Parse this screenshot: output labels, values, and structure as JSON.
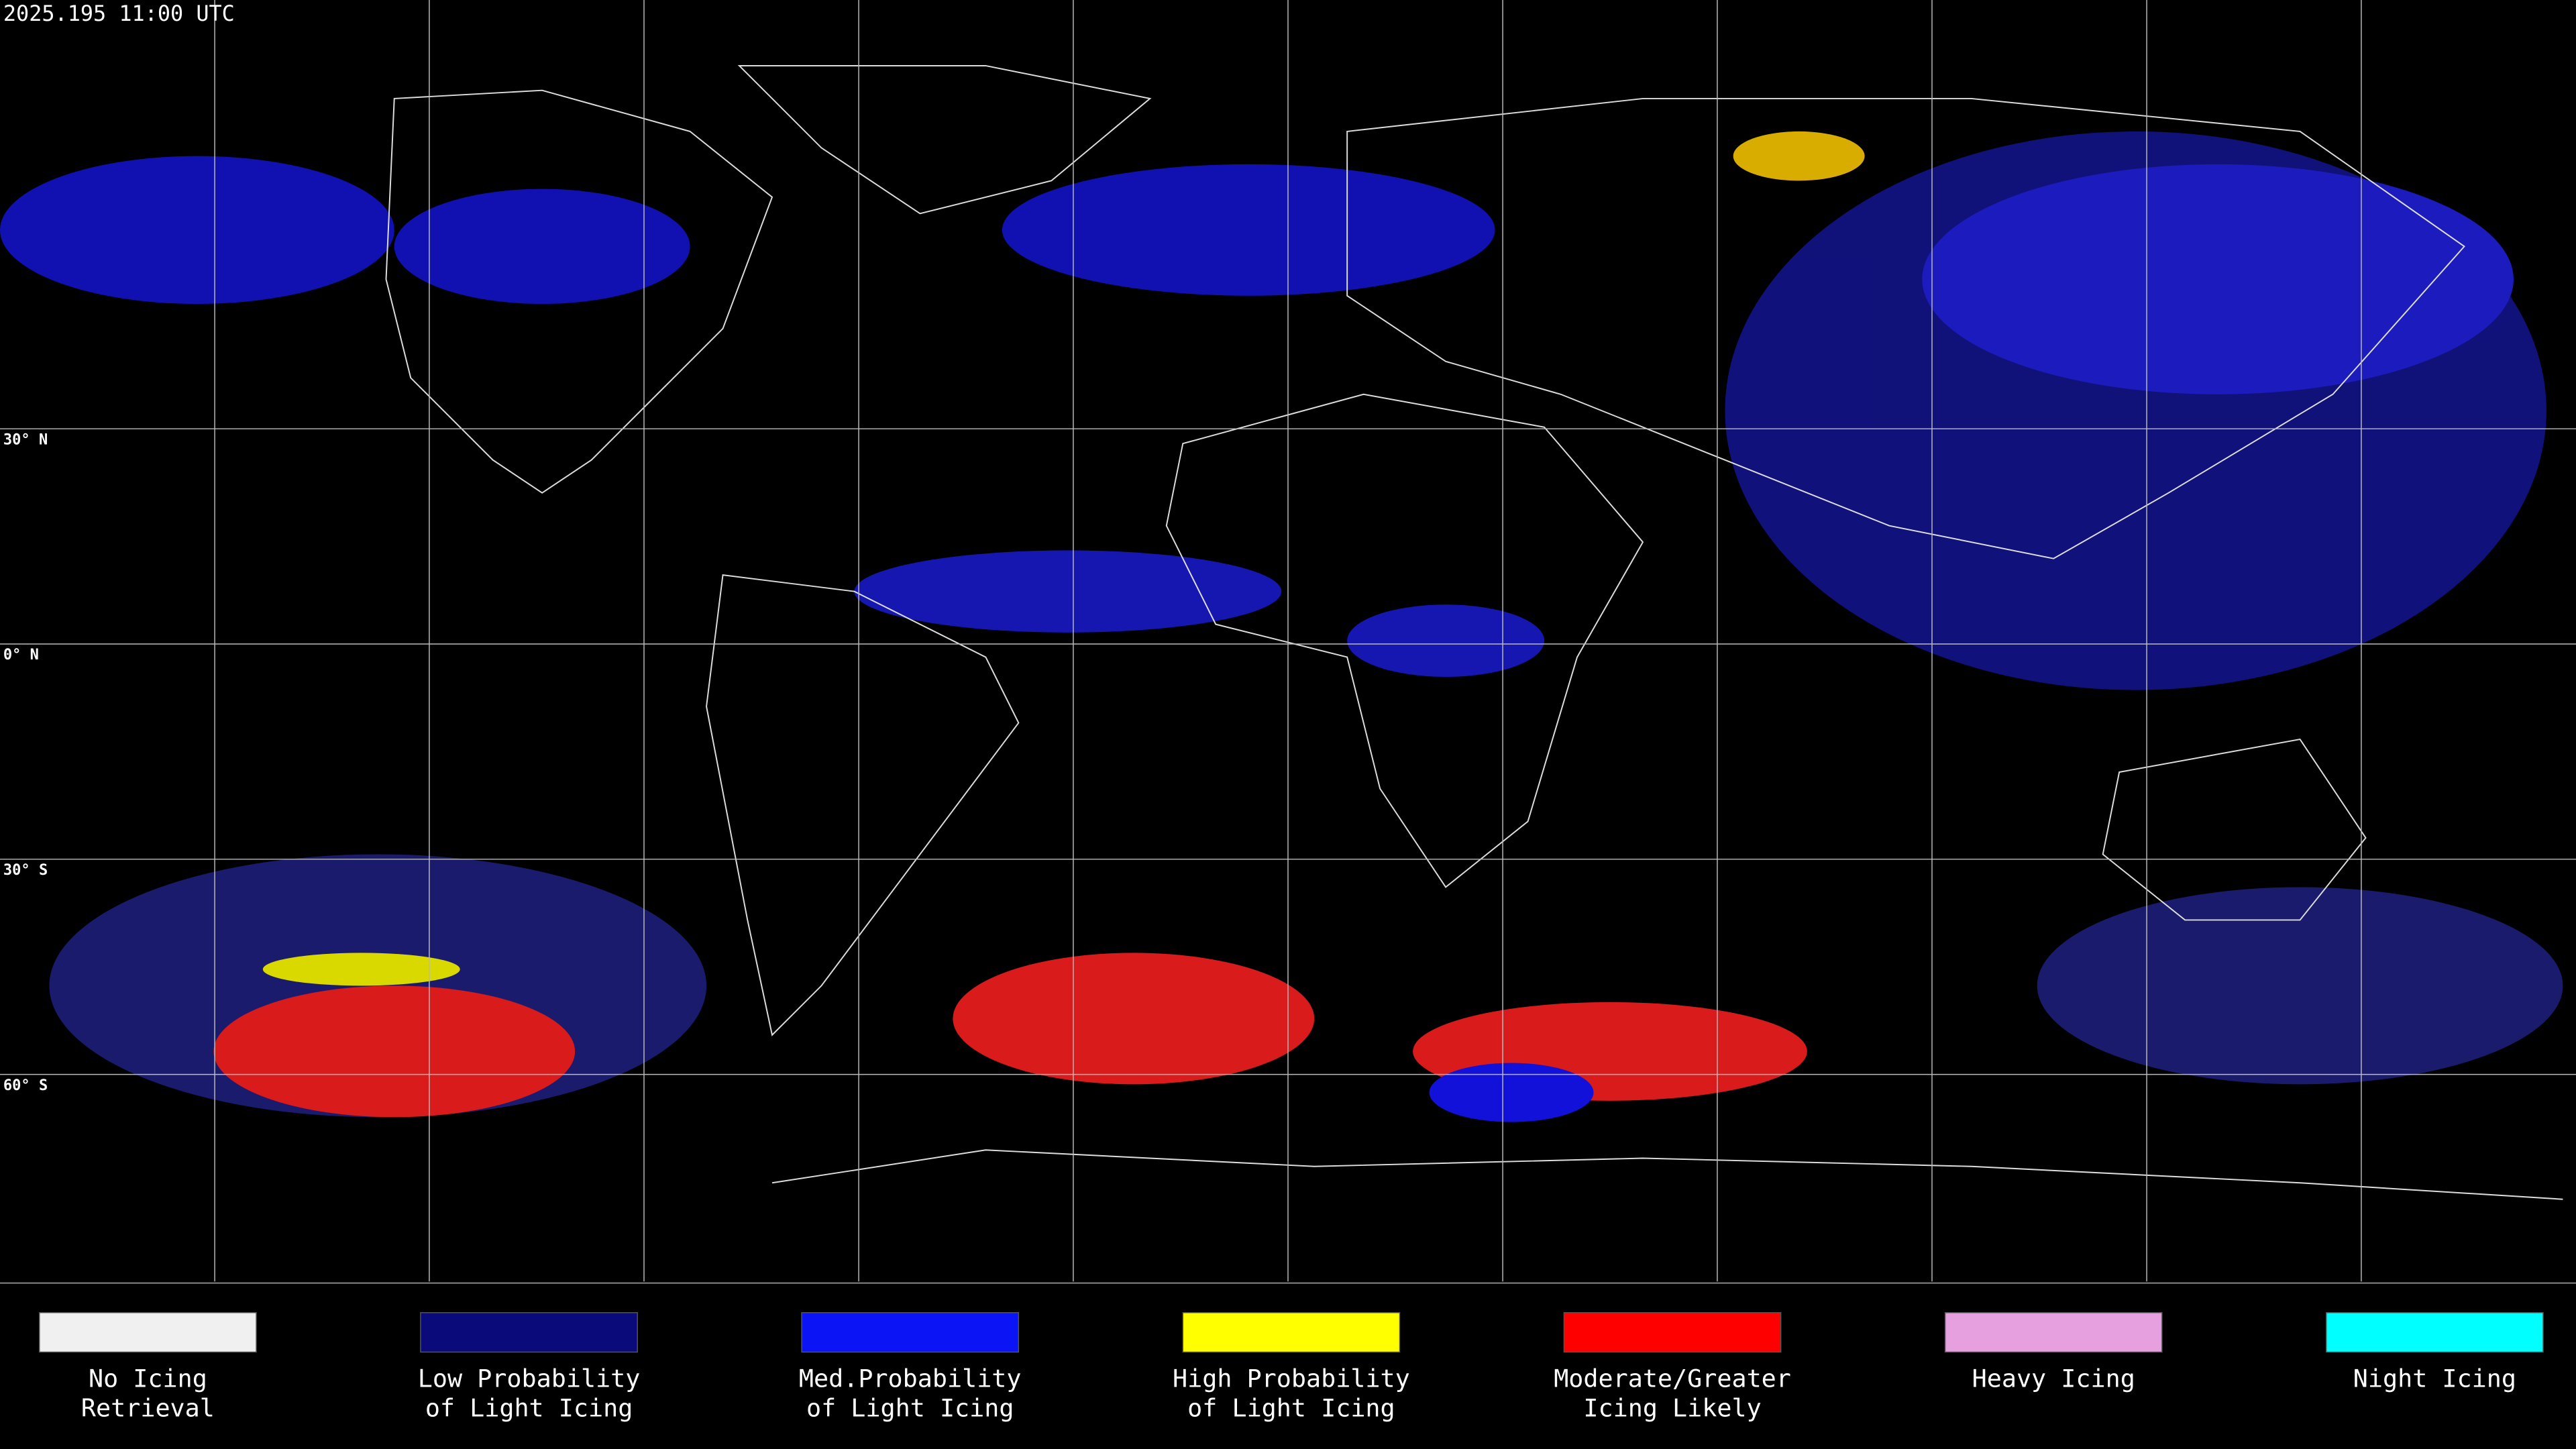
{
  "header": {
    "title": "2025.195 11:00 UTC"
  },
  "latitude_labels": [
    "30° N",
    "0° N",
    "30° S",
    "60° S"
  ],
  "legend": [
    {
      "lines": [
        "No Icing",
        "Retrieval"
      ],
      "color": "#f0f0f0"
    },
    {
      "lines": [
        "Low Probability",
        "of Light Icing"
      ],
      "color": "#0a0a7a"
    },
    {
      "lines": [
        "Med.Probability",
        "of Light Icing"
      ],
      "color": "#0a14f5"
    },
    {
      "lines": [
        "High Probability",
        "of Light Icing"
      ],
      "color": "#ffff00"
    },
    {
      "lines": [
        "Moderate/Greater",
        "Icing Likely"
      ],
      "color": "#ff0000"
    },
    {
      "lines": [
        "Heavy Icing"
      ],
      "color": "#e6a0e0"
    },
    {
      "lines": [
        "Night Icing"
      ],
      "color": "#00ffff"
    }
  ]
}
